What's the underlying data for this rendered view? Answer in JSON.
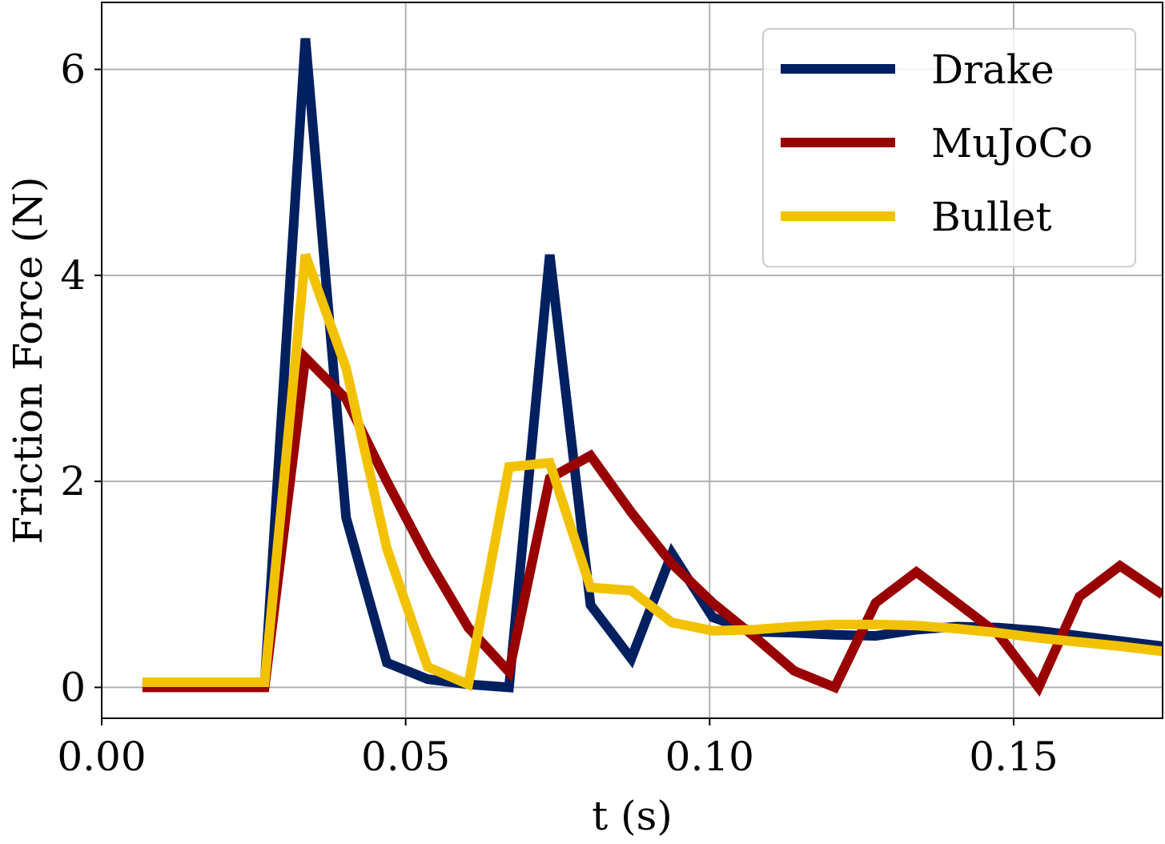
{
  "chart_data": {
    "type": "line",
    "title": "",
    "xlabel": "t (s)",
    "ylabel": "Friction Force (N)",
    "xlim": [
      0.0,
      0.1745
    ],
    "ylim": [
      -0.3,
      6.65
    ],
    "xticks": [
      0.0,
      0.05,
      0.1,
      0.15
    ],
    "xtick_labels": [
      "0.00",
      "0.05",
      "0.10",
      "0.15"
    ],
    "yticks": [
      0,
      2,
      4,
      6
    ],
    "ytick_labels": [
      "0",
      "2",
      "4",
      "6"
    ],
    "grid": true,
    "legend_position": "top-right",
    "series": [
      {
        "name": "Drake",
        "color": "#002060",
        "x": [
          0.0067,
          0.0268,
          0.0335,
          0.0402,
          0.0469,
          0.0536,
          0.0603,
          0.067,
          0.0737,
          0.0804,
          0.0871,
          0.0938,
          0.1005,
          0.1072,
          0.1139,
          0.1206,
          0.1273,
          0.134,
          0.1407,
          0.1474,
          0.1541,
          0.1608,
          0.1675,
          0.1745
        ],
        "y": [
          0.03,
          0.03,
          6.3,
          1.65,
          0.24,
          0.08,
          0.03,
          0.0,
          4.2,
          0.8,
          0.28,
          1.3,
          0.68,
          0.54,
          0.53,
          0.51,
          0.5,
          0.56,
          0.59,
          0.58,
          0.55,
          0.5,
          0.45,
          0.4
        ]
      },
      {
        "name": "MuJoCo",
        "color": "#990000",
        "x": [
          0.0067,
          0.0268,
          0.0335,
          0.0402,
          0.0469,
          0.0536,
          0.0603,
          0.067,
          0.0737,
          0.0804,
          0.0871,
          0.0938,
          0.1005,
          0.1072,
          0.1139,
          0.1206,
          0.1273,
          0.134,
          0.1407,
          0.1474,
          0.1541,
          0.1608,
          0.1675,
          0.1745
        ],
        "y": [
          0.0,
          0.0,
          3.2,
          2.8,
          2.0,
          1.25,
          0.58,
          0.15,
          2.03,
          2.25,
          1.7,
          1.2,
          0.82,
          0.5,
          0.16,
          0.0,
          0.82,
          1.12,
          0.82,
          0.52,
          0.0,
          0.88,
          1.18,
          0.9
        ]
      },
      {
        "name": "Bullet",
        "color": "#F2C200",
        "x": [
          0.0067,
          0.0268,
          0.0335,
          0.0402,
          0.0469,
          0.0536,
          0.0603,
          0.067,
          0.0737,
          0.0804,
          0.0871,
          0.0938,
          0.1005,
          0.1072,
          0.1139,
          0.1206,
          0.1273,
          0.134,
          0.1407,
          0.1474,
          0.1541,
          0.1608,
          0.1675,
          0.1745
        ],
        "y": [
          0.05,
          0.05,
          4.2,
          3.1,
          1.35,
          0.2,
          0.03,
          2.14,
          2.18,
          0.97,
          0.94,
          0.63,
          0.55,
          0.56,
          0.59,
          0.61,
          0.61,
          0.6,
          0.57,
          0.53,
          0.48,
          0.44,
          0.4,
          0.35
        ]
      }
    ]
  }
}
